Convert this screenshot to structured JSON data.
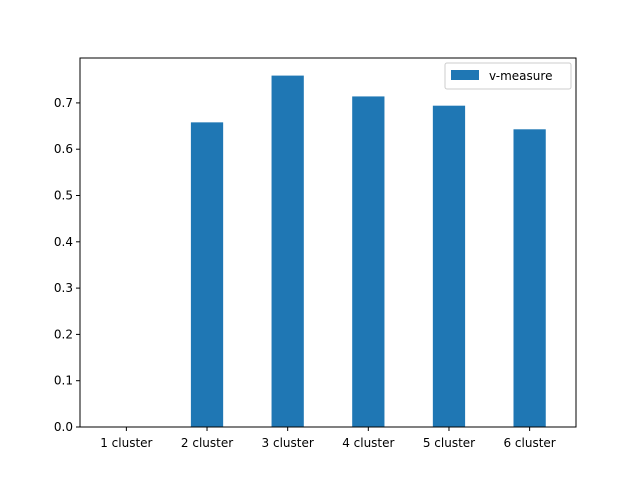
{
  "chart_data": {
    "type": "bar",
    "categories": [
      "1 cluster",
      "2 cluster",
      "3 cluster",
      "4 cluster",
      "5 cluster",
      "6 cluster"
    ],
    "series": [
      {
        "name": "v-measure",
        "values": [
          0.0,
          0.658,
          0.759,
          0.714,
          0.694,
          0.643
        ]
      }
    ],
    "yticks": [
      "0.0",
      "0.1",
      "0.2",
      "0.3",
      "0.4",
      "0.5",
      "0.6",
      "0.7"
    ],
    "ylim": [
      0,
      0.797
    ],
    "title": "",
    "xlabel": "",
    "ylabel": "",
    "grid": false,
    "legend_position": "top-right",
    "bar_color": "#1f77b4"
  }
}
